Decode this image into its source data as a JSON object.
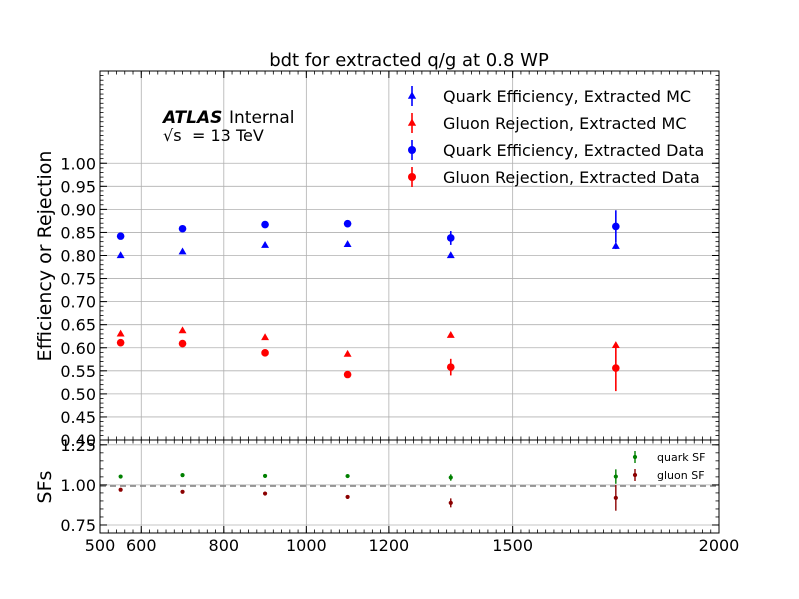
{
  "chart_data": [
    {
      "type": "scatter",
      "title": "bdt for extracted q/g at 0.8 WP",
      "ylabel": "Efficiency or Rejection",
      "xlim": [
        500,
        2000
      ],
      "ylim": [
        0.4,
        1.2
      ],
      "yticks": [
        "0.40",
        "0.45",
        "0.50",
        "0.55",
        "0.60",
        "0.65",
        "0.70",
        "0.75",
        "0.80",
        "0.85",
        "0.90",
        "0.95",
        "1.00"
      ],
      "grid": true,
      "legend_position": "top-right",
      "annotation": {
        "atlas": "ATLAS",
        "internal": "Internal",
        "sqrt": "√s",
        "energy": "= 13 TeV"
      },
      "series": [
        {
          "name": "Quark Efficiency, Extracted MC",
          "marker": "triangle",
          "color": "#0000ff",
          "x": [
            550,
            700,
            900,
            1100,
            1350,
            1750
          ],
          "y": [
            0.8,
            0.808,
            0.822,
            0.824,
            0.8,
            0.82
          ],
          "err": [
            0.002,
            0.002,
            0.002,
            0.003,
            0.004,
            0.006
          ]
        },
        {
          "name": "Gluon Rejection, Extracted MC",
          "marker": "triangle",
          "color": "#ff0000",
          "x": [
            550,
            700,
            900,
            1100,
            1350,
            1750
          ],
          "y": [
            0.63,
            0.637,
            0.622,
            0.586,
            0.627,
            0.605
          ],
          "err": [
            0.002,
            0.002,
            0.003,
            0.003,
            0.004,
            0.006
          ]
        },
        {
          "name": "Quark Efficiency, Extracted Data",
          "marker": "circle",
          "color": "#0000ff",
          "x": [
            550,
            700,
            900,
            1100,
            1350,
            1750
          ],
          "y": [
            0.842,
            0.858,
            0.867,
            0.869,
            0.838,
            0.863
          ],
          "err": [
            0.004,
            0.005,
            0.006,
            0.007,
            0.015,
            0.035
          ]
        },
        {
          "name": "Gluon Rejection, Extracted Data",
          "marker": "circle",
          "color": "#ff0000",
          "x": [
            550,
            700,
            900,
            1100,
            1350,
            1750
          ],
          "y": [
            0.611,
            0.609,
            0.589,
            0.542,
            0.558,
            0.556
          ],
          "err": [
            0.004,
            0.005,
            0.006,
            0.007,
            0.018,
            0.05
          ]
        }
      ]
    },
    {
      "type": "scatter",
      "ylabel": "SFs",
      "xlim": [
        500,
        2000
      ],
      "ylim": [
        0.7,
        1.28
      ],
      "yticks": [
        "0.75",
        "1.00",
        "1.25"
      ],
      "xticks": [
        "500",
        "600",
        "800",
        "1000",
        "1200",
        "1500",
        "2000"
      ],
      "reference_line": 1.0,
      "legend_position": "top-right",
      "series": [
        {
          "name": "quark SF",
          "color": "#008000",
          "x": [
            550,
            700,
            900,
            1100,
            1350,
            1750
          ],
          "y": [
            1.052,
            1.061,
            1.056,
            1.055,
            1.046,
            1.052
          ],
          "err": [
            0.006,
            0.006,
            0.007,
            0.008,
            0.02,
            0.045
          ]
        },
        {
          "name": "gluon SF",
          "color": "#8b0000",
          "x": [
            550,
            700,
            900,
            1100,
            1350,
            1750
          ],
          "y": [
            0.97,
            0.957,
            0.946,
            0.925,
            0.888,
            0.919
          ],
          "err": [
            0.006,
            0.007,
            0.009,
            0.012,
            0.028,
            0.08
          ]
        }
      ]
    }
  ]
}
